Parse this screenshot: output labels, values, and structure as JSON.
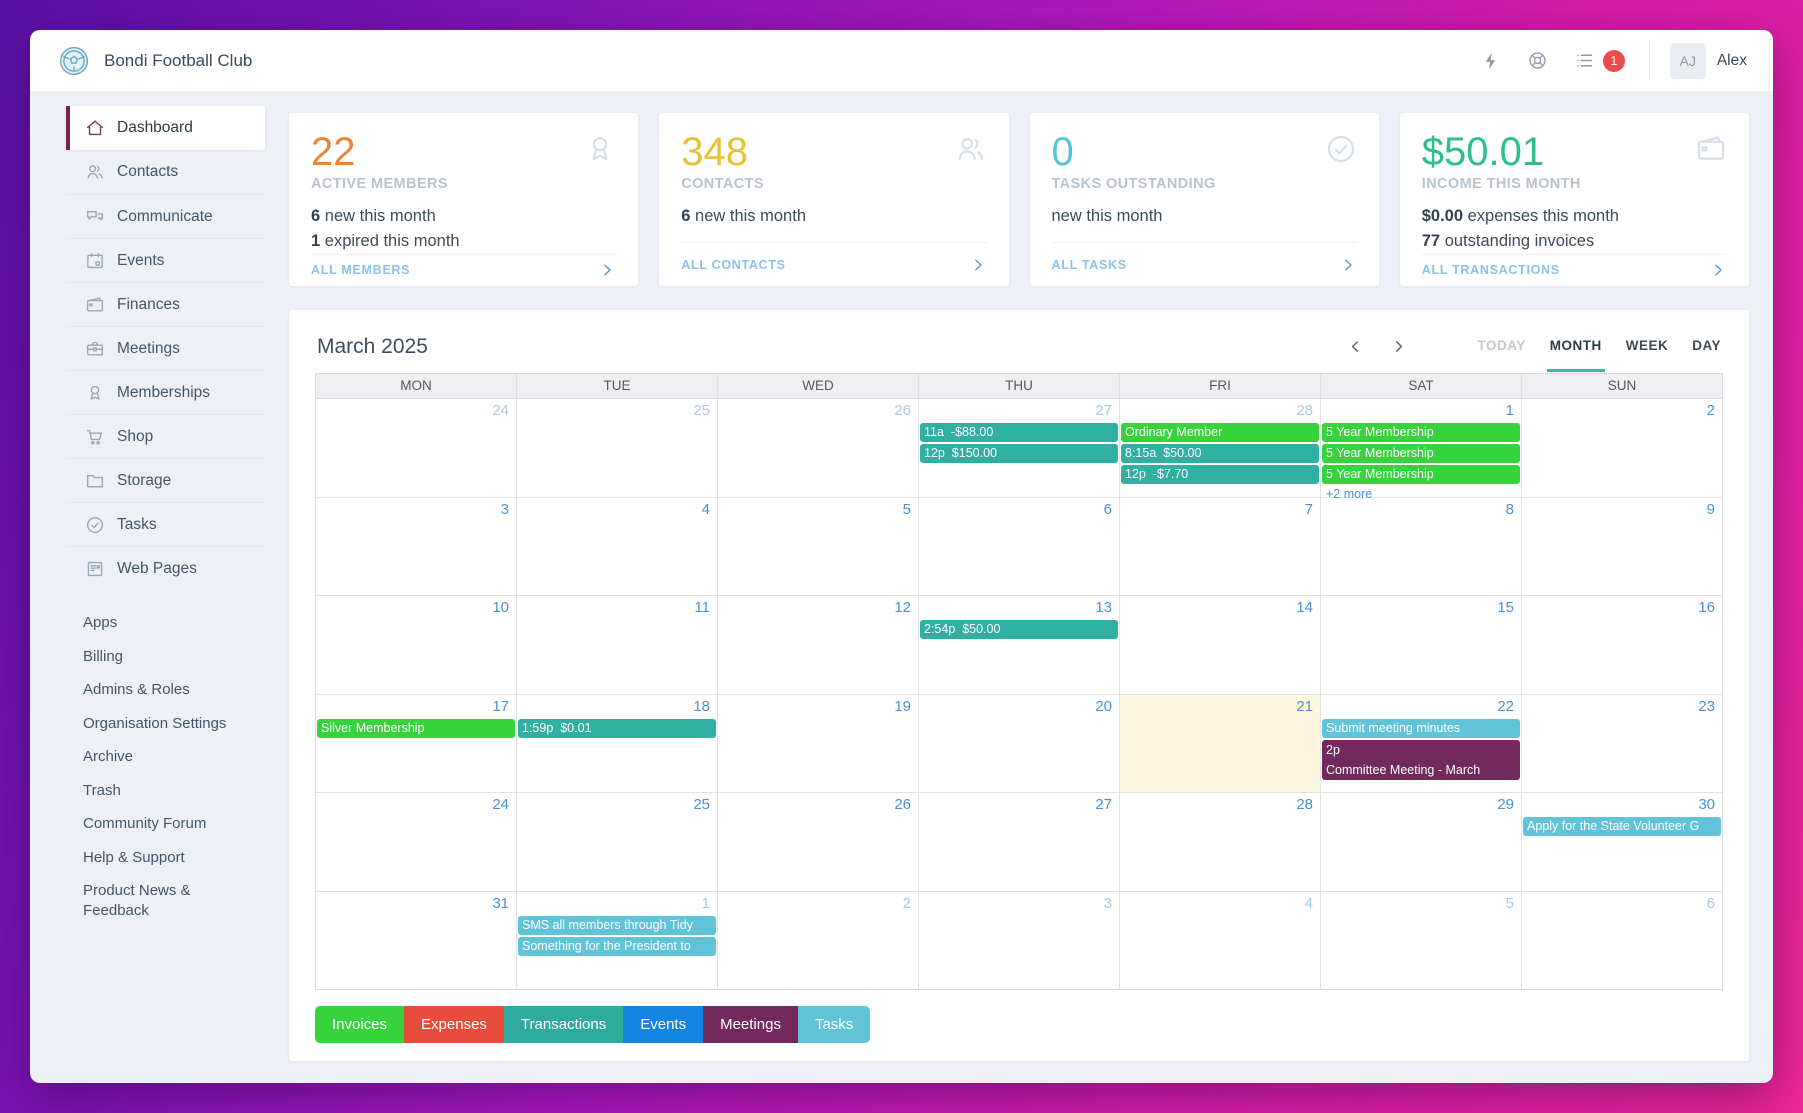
{
  "header": {
    "org_name": "Bondi Football Club",
    "notification_count": "1",
    "user_initials": "AJ",
    "user_name": "Alex"
  },
  "sidebar": {
    "primary": [
      {
        "label": "Dashboard",
        "icon": "home",
        "active": true
      },
      {
        "label": "Contacts",
        "icon": "contacts"
      },
      {
        "label": "Communicate",
        "icon": "chat"
      },
      {
        "label": "Events",
        "icon": "calendar"
      },
      {
        "label": "Finances",
        "icon": "wallet"
      },
      {
        "label": "Meetings",
        "icon": "briefcase"
      },
      {
        "label": "Memberships",
        "icon": "award"
      },
      {
        "label": "Shop",
        "icon": "cart"
      },
      {
        "label": "Storage",
        "icon": "folder"
      },
      {
        "label": "Tasks",
        "icon": "check"
      },
      {
        "label": "Web Pages",
        "icon": "news"
      }
    ],
    "secondary": [
      "Apps",
      "Billing",
      "Admins & Roles",
      "Organisation Settings",
      "Archive",
      "Trash",
      "Community Forum",
      "Help & Support",
      "Product News & Feedback"
    ]
  },
  "cards": [
    {
      "value": "22",
      "value_color": "#e8843c",
      "label": "ACTIVE MEMBERS",
      "icon": "award",
      "lines": [
        {
          "strong": "6",
          "rest": " new this month"
        },
        {
          "strong": "1",
          "rest": " expired this month"
        }
      ],
      "footer": "ALL MEMBERS"
    },
    {
      "value": "348",
      "value_color": "#e6c431",
      "label": "CONTACTS",
      "icon": "contacts",
      "lines": [
        {
          "strong": "6",
          "rest": " new this month"
        }
      ],
      "footer": "ALL CONTACTS"
    },
    {
      "value": "0",
      "value_color": "#58c3d8",
      "label": "TASKS OUTSTANDING",
      "icon": "check",
      "lines": [
        {
          "strong": "",
          "rest": "new this month"
        }
      ],
      "footer": "ALL TASKS"
    },
    {
      "value": "$50.01",
      "value_color": "#2fbd90",
      "label": "INCOME THIS MONTH",
      "icon": "wallet",
      "lines": [
        {
          "strong": "$0.00",
          "rest": " expenses this month"
        },
        {
          "strong": "77",
          "rest": " outstanding invoices"
        }
      ],
      "footer": "ALL TRANSACTIONS"
    }
  ],
  "event_colors": {
    "invoice": "#37d33c",
    "expense": "#e74c3c",
    "transaction": "#2fb0a0",
    "event": "#1583e0",
    "meeting": "#722a5c",
    "task": "#61c3d7"
  },
  "calendar": {
    "title": "March 2025",
    "views": [
      {
        "label": "TODAY",
        "state": "muted"
      },
      {
        "label": "MONTH",
        "state": "active"
      },
      {
        "label": "WEEK",
        "state": ""
      },
      {
        "label": "DAY",
        "state": ""
      }
    ],
    "day_headers": [
      "MON",
      "TUE",
      "WED",
      "THU",
      "FRI",
      "SAT",
      "SUN"
    ],
    "weeks": [
      {
        "cells": [
          {
            "day": "24",
            "out": true
          },
          {
            "day": "25",
            "out": true
          },
          {
            "day": "26",
            "out": true
          },
          {
            "day": "27",
            "out": true,
            "events": [
              {
                "type": "transaction",
                "text": "11a  -$88.00"
              },
              {
                "type": "transaction",
                "text": "12p  $150.00"
              }
            ]
          },
          {
            "day": "28",
            "out": true,
            "events": [
              {
                "type": "invoice",
                "text": "Ordinary Member"
              },
              {
                "type": "transaction",
                "text": "8:15a  $50.00"
              },
              {
                "type": "transaction",
                "text": "12p  -$7.70"
              }
            ]
          },
          {
            "day": "1",
            "events": [
              {
                "type": "invoice",
                "text": "5 Year Membership"
              },
              {
                "type": "invoice",
                "text": "5 Year Membership"
              },
              {
                "type": "invoice",
                "text": "5 Year Membership"
              }
            ],
            "more": "+2 more"
          },
          {
            "day": "2"
          }
        ]
      },
      {
        "cells": [
          {
            "day": "3"
          },
          {
            "day": "4"
          },
          {
            "day": "5"
          },
          {
            "day": "6"
          },
          {
            "day": "7"
          },
          {
            "day": "8"
          },
          {
            "day": "9"
          }
        ]
      },
      {
        "cells": [
          {
            "day": "10"
          },
          {
            "day": "11"
          },
          {
            "day": "12"
          },
          {
            "day": "13",
            "events": [
              {
                "type": "transaction",
                "text": "2:54p  $50.00"
              }
            ]
          },
          {
            "day": "14"
          },
          {
            "day": "15"
          },
          {
            "day": "16"
          }
        ]
      },
      {
        "cells": [
          {
            "day": "17",
            "events": [
              {
                "type": "invoice",
                "text": "Silver Membership"
              }
            ]
          },
          {
            "day": "18",
            "events": [
              {
                "type": "transaction",
                "text": "1:59p  $0.01"
              }
            ]
          },
          {
            "day": "19"
          },
          {
            "day": "20"
          },
          {
            "day": "21",
            "today": true
          },
          {
            "day": "22",
            "events": [
              {
                "type": "task",
                "text": "Submit meeting minutes"
              },
              {
                "type": "meeting",
                "lines": [
                  "2p",
                  "Committee Meeting - March"
                ]
              }
            ]
          },
          {
            "day": "23"
          }
        ]
      },
      {
        "cells": [
          {
            "day": "24"
          },
          {
            "day": "25"
          },
          {
            "day": "26"
          },
          {
            "day": "27"
          },
          {
            "day": "28"
          },
          {
            "day": "29"
          },
          {
            "day": "30",
            "events": [
              {
                "type": "task",
                "text": "Apply for the State Volunteer G"
              }
            ]
          }
        ]
      },
      {
        "cells": [
          {
            "day": "31"
          },
          {
            "day": "1",
            "out": true,
            "events": [
              {
                "type": "task",
                "text": "SMS all members through Tidy"
              },
              {
                "type": "task",
                "text": "Something for the President to"
              }
            ]
          },
          {
            "day": "2",
            "out": true
          },
          {
            "day": "3",
            "out": true
          },
          {
            "day": "4",
            "out": true
          },
          {
            "day": "5",
            "out": true
          },
          {
            "day": "6",
            "out": true
          }
        ]
      }
    ],
    "legend": [
      {
        "label": "Invoices",
        "color": "#37d33c"
      },
      {
        "label": "Expenses",
        "color": "#e74c3c"
      },
      {
        "label": "Transactions",
        "color": "#2fab9d"
      },
      {
        "label": "Events",
        "color": "#1583e0"
      },
      {
        "label": "Meetings",
        "color": "#722a5c"
      },
      {
        "label": "Tasks",
        "color": "#61c3d7"
      }
    ]
  }
}
